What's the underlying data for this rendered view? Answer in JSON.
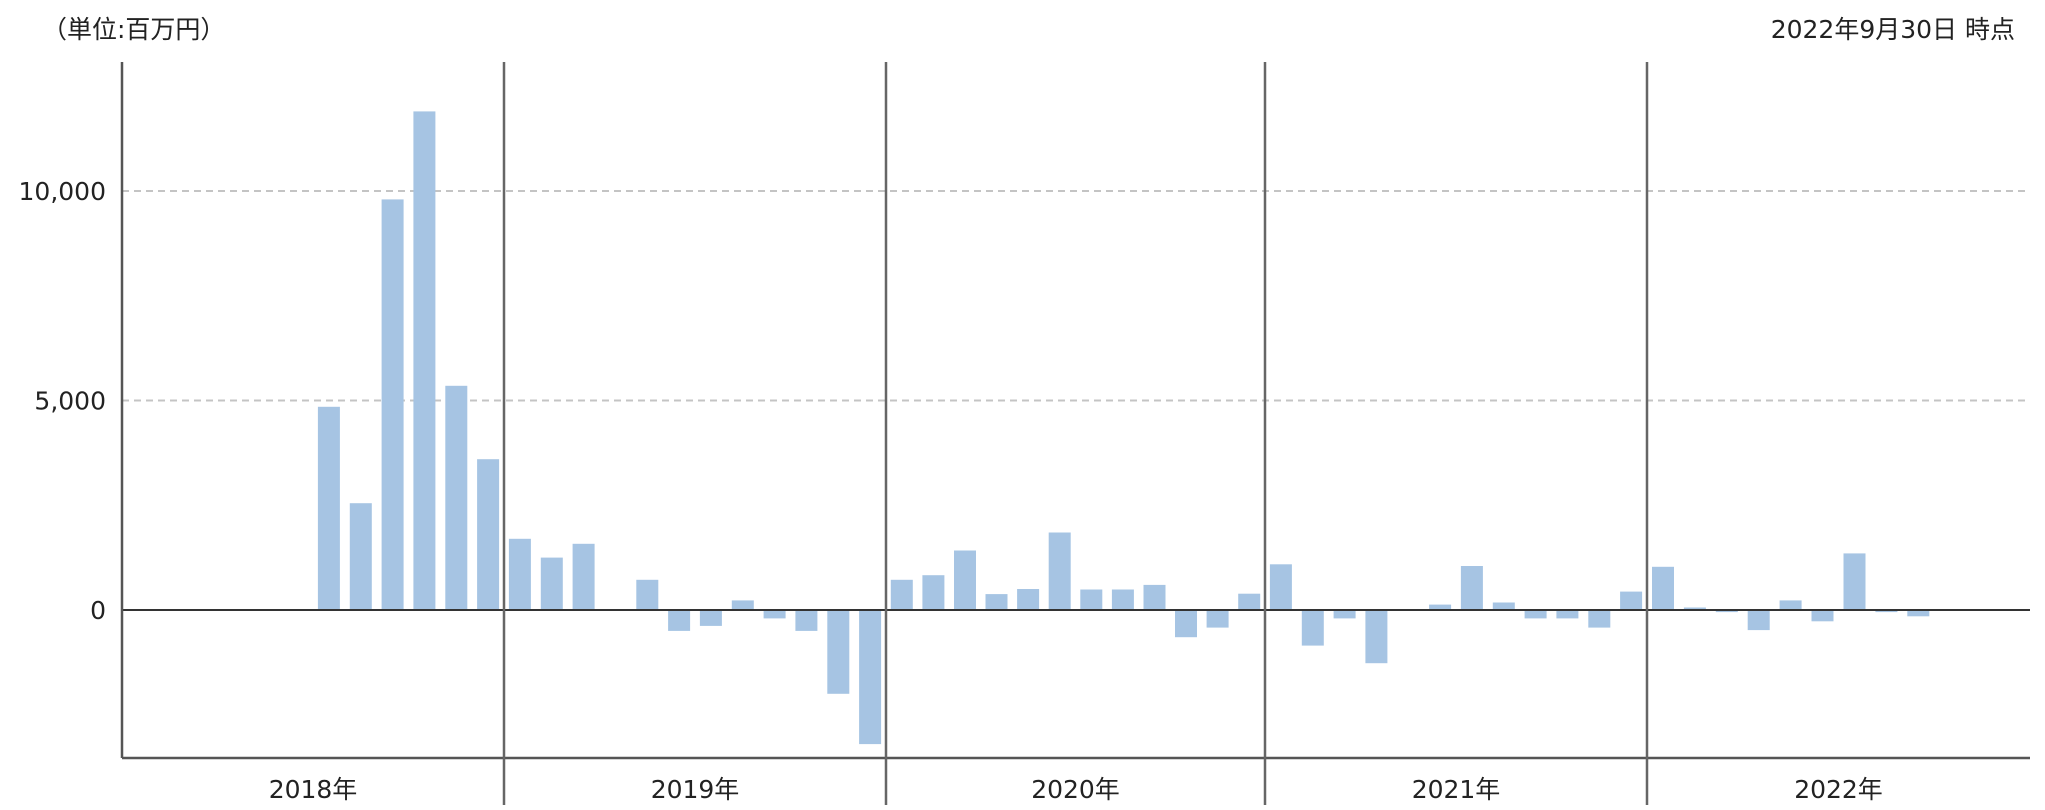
{
  "header": {
    "unit": "（単位:百万円）",
    "as_of": "2022年9月30日 時点"
  },
  "chart_data": {
    "type": "bar",
    "title": "",
    "xlabel": "",
    "ylabel": "",
    "ylim": [
      -3500,
      13200
    ],
    "y_ticks": [
      {
        "value": 0,
        "label": "0"
      },
      {
        "value": 5000,
        "label": "5,000"
      },
      {
        "value": 10000,
        "label": "10,000"
      }
    ],
    "grid": {
      "y": true,
      "style": "dashed"
    },
    "legend": "none",
    "bar_color": "#a6c4e3",
    "years": [
      {
        "label": "2018年",
        "values": [
          null,
          null,
          null,
          null,
          null,
          null,
          4850,
          2550,
          9800,
          11900,
          5350,
          3600
        ]
      },
      {
        "label": "2019年",
        "values": [
          1700,
          1250,
          1580,
          null,
          720,
          -500,
          -380,
          230,
          -200,
          -500,
          -2000,
          -3200
        ]
      },
      {
        "label": "2020年",
        "values": [
          720,
          830,
          1420,
          380,
          500,
          1850,
          490,
          490,
          600,
          -650,
          -420,
          390
        ]
      },
      {
        "label": "2021年",
        "values": [
          1090,
          -850,
          -200,
          -1270,
          null,
          130,
          1050,
          180,
          -200,
          -200,
          -420,
          440
        ]
      },
      {
        "label": "2022年",
        "values": [
          1030,
          60,
          -50,
          -480,
          230,
          -270,
          1350,
          -50,
          -150,
          null,
          null,
          null
        ]
      }
    ]
  }
}
